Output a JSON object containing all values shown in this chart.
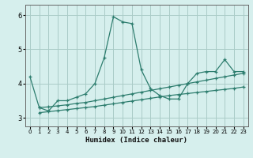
{
  "xlabel": "Humidex (Indice chaleur)",
  "bg_color": "#d6efed",
  "line_color": "#2d7d6e",
  "grid_color": "#aacbc7",
  "xlim": [
    -0.5,
    23.5
  ],
  "ylim": [
    2.75,
    6.3
  ],
  "yticks": [
    3,
    4,
    5,
    6
  ],
  "xticks": [
    0,
    1,
    2,
    3,
    4,
    5,
    6,
    7,
    8,
    9,
    10,
    11,
    12,
    13,
    14,
    15,
    16,
    17,
    18,
    19,
    20,
    21,
    22,
    23
  ],
  "series1_x": [
    0,
    1,
    2,
    3,
    4,
    5,
    6,
    7,
    8,
    9,
    10,
    11,
    12,
    13,
    14,
    15,
    16,
    17,
    18,
    19,
    20,
    21,
    22,
    23
  ],
  "series1_y": [
    4.2,
    3.3,
    3.2,
    3.5,
    3.5,
    3.6,
    3.7,
    4.0,
    4.75,
    5.95,
    5.8,
    5.75,
    4.4,
    3.85,
    3.65,
    3.55,
    3.55,
    4.0,
    4.3,
    4.35,
    4.35,
    4.7,
    4.35,
    4.35
  ],
  "series2_x": [
    1,
    2,
    3,
    4,
    5,
    6,
    7,
    8,
    9,
    10,
    11,
    12,
    13,
    14,
    15,
    16,
    17,
    18,
    19,
    20,
    21,
    22,
    23
  ],
  "series2_y": [
    3.3,
    3.32,
    3.35,
    3.38,
    3.42,
    3.45,
    3.5,
    3.55,
    3.6,
    3.65,
    3.7,
    3.75,
    3.8,
    3.85,
    3.9,
    3.95,
    4.0,
    4.05,
    4.1,
    4.15,
    4.2,
    4.25,
    4.3
  ],
  "series3_x": [
    1,
    2,
    3,
    4,
    5,
    6,
    7,
    8,
    9,
    10,
    11,
    12,
    13,
    14,
    15,
    16,
    17,
    18,
    19,
    20,
    21,
    22,
    23
  ],
  "series3_y": [
    3.15,
    3.18,
    3.21,
    3.24,
    3.27,
    3.3,
    3.33,
    3.37,
    3.41,
    3.45,
    3.49,
    3.53,
    3.57,
    3.61,
    3.65,
    3.68,
    3.71,
    3.74,
    3.77,
    3.8,
    3.83,
    3.86,
    3.9
  ]
}
